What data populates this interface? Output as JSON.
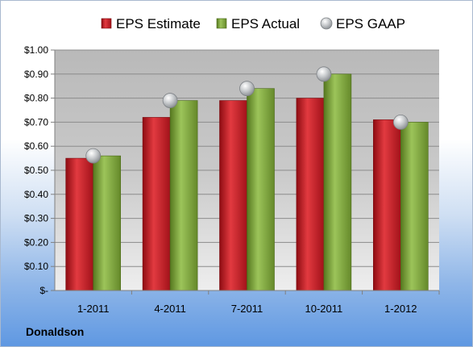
{
  "company": "Donaldson",
  "chart_data": {
    "type": "bar",
    "categories": [
      "1-2011",
      "4-2011",
      "7-2011",
      "10-2011",
      "1-2012"
    ],
    "series": [
      {
        "name": "EPS Estimate",
        "type": "bar",
        "color": "#c0141c",
        "values": [
          0.55,
          0.72,
          0.79,
          0.8,
          0.71
        ]
      },
      {
        "name": "EPS Actual",
        "type": "bar",
        "color": "#7aa23a",
        "values": [
          0.56,
          0.79,
          0.84,
          0.9,
          0.7
        ]
      },
      {
        "name": "EPS GAAP",
        "type": "scatter",
        "color": "#b4b8bc",
        "values": [
          0.56,
          0.79,
          0.84,
          0.9,
          0.7
        ]
      }
    ],
    "ylim": [
      0,
      1.0
    ],
    "yticks": [
      0,
      0.1,
      0.2,
      0.3,
      0.4,
      0.5,
      0.6,
      0.7,
      0.8,
      0.9,
      1.0
    ],
    "ytick_labels": [
      "$-",
      "$0.10",
      "$0.20",
      "$0.30",
      "$0.40",
      "$0.50",
      "$0.60",
      "$0.70",
      "$0.80",
      "$0.90",
      "$1.00"
    ],
    "grid": true,
    "legend": "top"
  }
}
